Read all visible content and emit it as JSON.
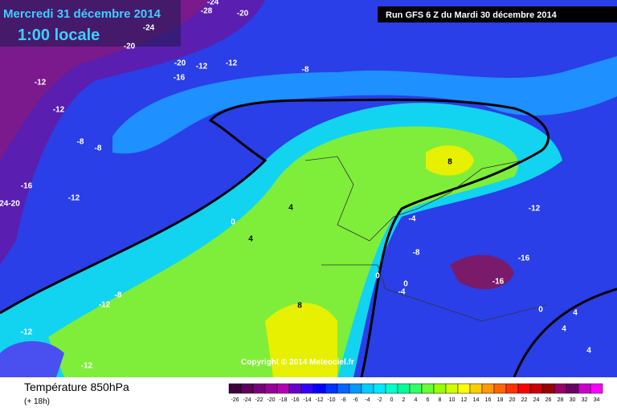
{
  "header": {
    "date": "Mercredi 31 décembre 2014",
    "time": "1:00 locale",
    "run": "Run GFS 6 Z du Mardi 30 décembre 2014"
  },
  "copyright": "Copyright © 2014 Meteociel.fr",
  "footer": {
    "title": "Température 850hPa",
    "lead": "(+ 18h)"
  },
  "contour_labels": [
    "-24",
    "-28",
    "-20",
    "-24",
    "-20",
    "-20",
    "-12",
    "-12",
    "-16",
    "-8",
    "-12",
    "-12",
    "-8",
    "-8",
    "-16",
    "-12",
    "24-20",
    "4",
    "0",
    "4",
    "-4",
    "8",
    "-12",
    "-8",
    "-16",
    "-16",
    "0",
    "0",
    "-4",
    "8",
    "-12",
    "-8",
    "-12",
    "-12",
    "0",
    "4",
    "4",
    "4"
  ],
  "scale": {
    "values": [
      -26,
      -24,
      -22,
      -20,
      -18,
      -16,
      -14,
      -12,
      -10,
      -8,
      -6,
      -4,
      -2,
      0,
      2,
      4,
      6,
      8,
      10,
      12,
      14,
      16,
      18,
      20,
      22,
      24,
      26,
      28,
      30,
      32,
      34
    ],
    "colors": [
      "#3d003d",
      "#5c005c",
      "#7a007a",
      "#990099",
      "#b300b3",
      "#6600cc",
      "#3300ff",
      "#0000ff",
      "#0033ff",
      "#0066ff",
      "#0099ff",
      "#00ccff",
      "#00e6ff",
      "#00ffcc",
      "#00ff99",
      "#33ff66",
      "#66ff33",
      "#99ff00",
      "#ccff00",
      "#ffff00",
      "#ffcc00",
      "#ff9900",
      "#ff6600",
      "#ff3300",
      "#ff0000",
      "#cc0000",
      "#990000",
      "#990066",
      "#660066",
      "#cc00cc",
      "#ff00ff"
    ]
  }
}
